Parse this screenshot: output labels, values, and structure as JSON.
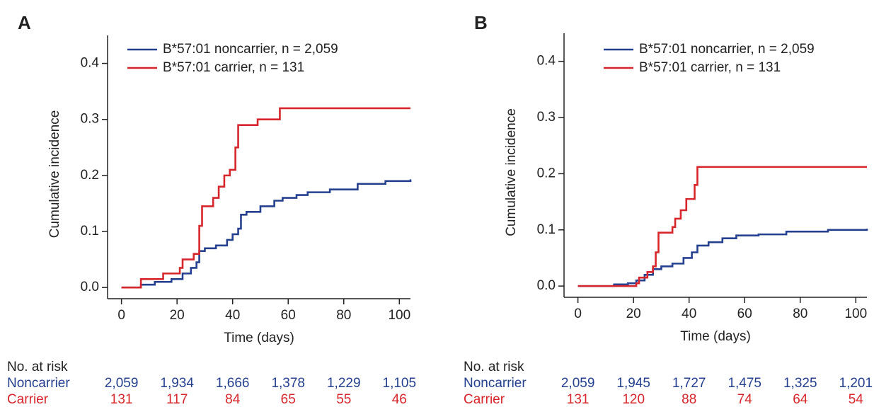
{
  "chart_data": [
    {
      "type": "line",
      "step": true,
      "panel": "A",
      "xlabel": "Time (days)",
      "ylabel": "Cumulative incidence",
      "xlim": [
        -5,
        104
      ],
      "ylim": [
        -0.02,
        0.45
      ],
      "xticks": [
        0,
        20,
        40,
        60,
        80,
        100
      ],
      "yticks": [
        {
          "value": 0,
          "label": "0.0"
        },
        0.1,
        0.2,
        0.3,
        0.4
      ],
      "series": [
        {
          "name": "B*57:01 noncarrier, n = 2,059",
          "color": "#25408f",
          "x": [
            0,
            7,
            12,
            18,
            22,
            25,
            27,
            28,
            30,
            34,
            38,
            40,
            42,
            43,
            45,
            50,
            55,
            58,
            63,
            67,
            75,
            85,
            95,
            104
          ],
          "values": [
            0,
            0.005,
            0.01,
            0.015,
            0.025,
            0.035,
            0.045,
            0.065,
            0.07,
            0.075,
            0.085,
            0.095,
            0.105,
            0.13,
            0.135,
            0.145,
            0.155,
            0.16,
            0.165,
            0.17,
            0.175,
            0.185,
            0.19,
            0.193
          ]
        },
        {
          "name": "B*57:01 carrier, n = 131",
          "color": "#d7262b",
          "x": [
            0,
            7,
            15,
            21,
            22,
            26,
            28,
            29,
            33,
            35,
            37,
            39,
            41,
            42,
            49,
            57,
            104
          ],
          "values": [
            0,
            0.015,
            0.025,
            0.035,
            0.05,
            0.06,
            0.11,
            0.145,
            0.16,
            0.18,
            0.2,
            0.21,
            0.25,
            0.29,
            0.3,
            0.32,
            0.32
          ]
        }
      ],
      "risk_table": {
        "title": "No. at risk",
        "rows": [
          {
            "name": "Noncarrier",
            "color": "#25408f",
            "values": [
              2059,
              1934,
              1666,
              1378,
              1229,
              1105
            ],
            "value_labels": [
              "2,059",
              "1,934",
              "1,666",
              "1,378",
              "1,229",
              "1,105"
            ]
          },
          {
            "name": "Carrier",
            "color": "#d7262b",
            "values": [
              131,
              117,
              84,
              65,
              55,
              46
            ]
          }
        ]
      }
    },
    {
      "type": "line",
      "step": true,
      "panel": "B",
      "xlabel": "Time (days)",
      "ylabel": "Cumulative incidence",
      "xlim": [
        -5,
        104
      ],
      "ylim": [
        -0.02,
        0.45
      ],
      "xticks": [
        0,
        20,
        40,
        60,
        80,
        100
      ],
      "yticks": [
        {
          "value": 0,
          "label": "0.0"
        },
        0.1,
        0.2,
        0.3,
        0.4
      ],
      "series": [
        {
          "name": "B*57:01 noncarrier, n = 2,059",
          "color": "#25408f",
          "x": [
            0,
            13,
            18,
            21,
            24,
            27,
            30,
            34,
            38,
            41,
            43,
            47,
            52,
            57,
            65,
            75,
            90,
            104
          ],
          "values": [
            0,
            0.003,
            0.005,
            0.01,
            0.02,
            0.03,
            0.035,
            0.04,
            0.05,
            0.06,
            0.072,
            0.078,
            0.085,
            0.09,
            0.092,
            0.097,
            0.1,
            0.102
          ]
        },
        {
          "name": "B*57:01 carrier, n = 131",
          "color": "#d7262b",
          "x": [
            0,
            21,
            22,
            25,
            27,
            28,
            29,
            34,
            35,
            37,
            39,
            42,
            43,
            104
          ],
          "values": [
            0,
            0.005,
            0.015,
            0.025,
            0.035,
            0.06,
            0.095,
            0.105,
            0.12,
            0.135,
            0.155,
            0.18,
            0.212,
            0.212
          ]
        }
      ],
      "risk_table": {
        "title": "No. at risk",
        "rows": [
          {
            "name": "Noncarrier",
            "color": "#25408f",
            "values": [
              2059,
              1945,
              1727,
              1475,
              1325,
              1201
            ],
            "value_labels": [
              "2,059",
              "1,945",
              "1,727",
              "1,475",
              "1,325",
              "1,201"
            ]
          },
          {
            "name": "Carrier",
            "color": "#d7262b",
            "values": [
              131,
              120,
              88,
              74,
              64,
              54
            ]
          }
        ]
      }
    }
  ]
}
